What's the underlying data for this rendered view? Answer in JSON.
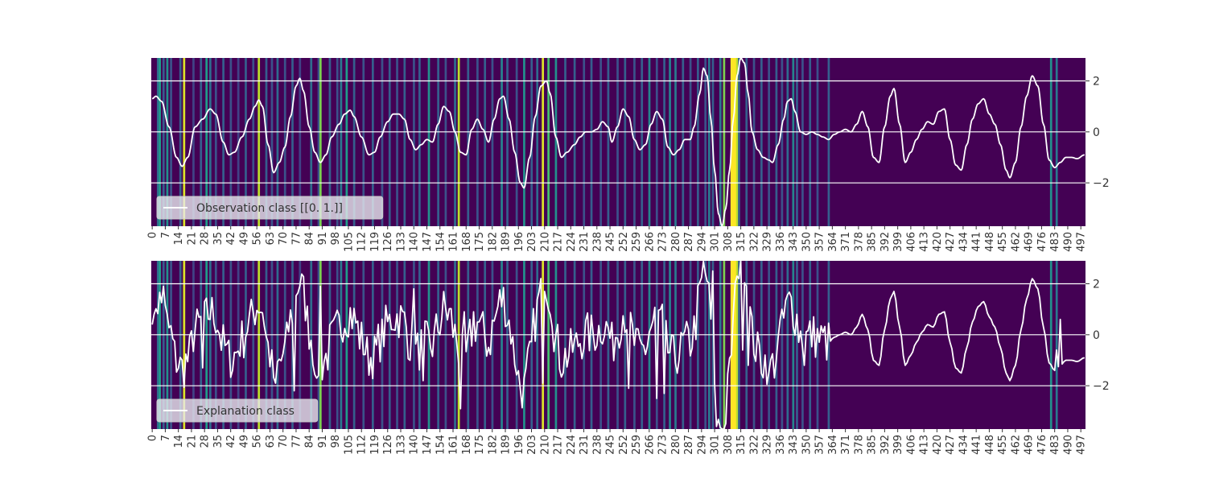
{
  "chart_data": [
    {
      "type": "line",
      "heatmap_overlay": true,
      "colormap": "viridis",
      "legend": {
        "label": "Observation class [[0. 1.]]",
        "placement": "lower-left"
      },
      "xlim": [
        0,
        499
      ],
      "ylim": [
        -3.7,
        2.9
      ],
      "yticks": [
        -2,
        0,
        2
      ],
      "xtick_step": 7,
      "grid": true,
      "line_color": "#ffffff",
      "line_kind": "smooth",
      "series_knots": [
        [
          0,
          1.3
        ],
        [
          2,
          1.4
        ],
        [
          5,
          1.2
        ],
        [
          9,
          0.2
        ],
        [
          13,
          -1.0
        ],
        [
          16,
          -1.35
        ],
        [
          19,
          -1.0
        ],
        [
          23,
          0.2
        ],
        [
          27,
          0.5
        ],
        [
          31,
          0.9
        ],
        [
          34,
          0.7
        ],
        [
          38,
          -0.4
        ],
        [
          41,
          -0.9
        ],
        [
          44,
          -0.8
        ],
        [
          48,
          -0.2
        ],
        [
          52,
          0.5
        ],
        [
          55,
          1.0
        ],
        [
          57,
          1.25
        ],
        [
          59,
          1.0
        ],
        [
          62,
          -0.5
        ],
        [
          65,
          -1.6
        ],
        [
          68,
          -1.2
        ],
        [
          71,
          -0.6
        ],
        [
          74,
          0.6
        ],
        [
          77,
          1.8
        ],
        [
          79,
          2.1
        ],
        [
          81,
          1.6
        ],
        [
          84,
          0.2
        ],
        [
          87,
          -0.8
        ],
        [
          90,
          -1.2
        ],
        [
          93,
          -0.9
        ],
        [
          96,
          -0.2
        ],
        [
          100,
          0.3
        ],
        [
          103,
          0.7
        ],
        [
          106,
          0.85
        ],
        [
          108,
          0.6
        ],
        [
          112,
          -0.2
        ],
        [
          116,
          -0.9
        ],
        [
          119,
          -0.8
        ],
        [
          122,
          -0.2
        ],
        [
          126,
          0.4
        ],
        [
          129,
          0.7
        ],
        [
          132,
          0.7
        ],
        [
          135,
          0.5
        ],
        [
          138,
          -0.3
        ],
        [
          141,
          -0.7
        ],
        [
          144,
          -0.5
        ],
        [
          147,
          -0.3
        ],
        [
          150,
          -0.4
        ],
        [
          153,
          0.3
        ],
        [
          156,
          1.0
        ],
        [
          159,
          0.8
        ],
        [
          162,
          0.0
        ],
        [
          165,
          -0.8
        ],
        [
          168,
          -0.9
        ],
        [
          171,
          0.1
        ],
        [
          174,
          0.5
        ],
        [
          177,
          0.1
        ],
        [
          180,
          -0.4
        ],
        [
          183,
          0.5
        ],
        [
          186,
          1.3
        ],
        [
          188,
          1.4
        ],
        [
          191,
          0.5
        ],
        [
          194,
          -0.8
        ],
        [
          197,
          -2.0
        ],
        [
          199,
          -2.2
        ],
        [
          202,
          -1.0
        ],
        [
          205,
          0.6
        ],
        [
          208,
          1.8
        ],
        [
          211,
          2.0
        ],
        [
          213,
          1.5
        ],
        [
          216,
          -0.2
        ],
        [
          219,
          -1.0
        ],
        [
          222,
          -0.8
        ],
        [
          226,
          -0.5
        ],
        [
          229,
          -0.2
        ],
        [
          232,
          0.0
        ],
        [
          235,
          0.0
        ],
        [
          238,
          0.1
        ],
        [
          241,
          0.4
        ],
        [
          244,
          0.2
        ],
        [
          246,
          -0.4
        ],
        [
          249,
          0.2
        ],
        [
          252,
          0.9
        ],
        [
          255,
          0.6
        ],
        [
          258,
          -0.3
        ],
        [
          261,
          -0.7
        ],
        [
          264,
          -0.5
        ],
        [
          267,
          0.3
        ],
        [
          270,
          0.8
        ],
        [
          273,
          0.5
        ],
        [
          276,
          -0.6
        ],
        [
          279,
          -0.9
        ],
        [
          282,
          -0.7
        ],
        [
          285,
          -0.3
        ],
        [
          288,
          -0.3
        ],
        [
          290,
          0.2
        ],
        [
          293,
          1.5
        ],
        [
          295,
          2.5
        ],
        [
          297,
          2.2
        ],
        [
          299,
          0.5
        ],
        [
          301,
          -1.5
        ],
        [
          303,
          -3.2
        ],
        [
          305,
          -3.7
        ],
        [
          307,
          -3.0
        ],
        [
          309,
          -1.5
        ],
        [
          311,
          0.5
        ],
        [
          313,
          2.2
        ],
        [
          315,
          2.9
        ],
        [
          317,
          2.7
        ],
        [
          319,
          1.5
        ],
        [
          321,
          0.0
        ],
        [
          324,
          -0.7
        ],
        [
          327,
          -1.0
        ],
        [
          330,
          -1.1
        ],
        [
          332,
          -1.2
        ],
        [
          335,
          -0.5
        ],
        [
          338,
          0.5
        ],
        [
          340,
          1.2
        ],
        [
          342,
          1.3
        ],
        [
          344,
          0.8
        ],
        [
          347,
          0.0
        ],
        [
          350,
          -0.1
        ],
        [
          353,
          0.0
        ],
        [
          356,
          -0.1
        ],
        [
          359,
          -0.2
        ],
        [
          362,
          -0.3
        ],
        [
          365,
          -0.1
        ],
        [
          368,
          0.0
        ],
        [
          371,
          0.1
        ],
        [
          374,
          0.0
        ],
        [
          377,
          0.3
        ],
        [
          380,
          0.8
        ],
        [
          383,
          0.2
        ],
        [
          386,
          -1.0
        ],
        [
          389,
          -1.2
        ],
        [
          392,
          0.2
        ],
        [
          395,
          1.4
        ],
        [
          397,
          1.7
        ],
        [
          400,
          0.3
        ],
        [
          403,
          -1.2
        ],
        [
          406,
          -0.8
        ],
        [
          409,
          -0.3
        ],
        [
          412,
          0.1
        ],
        [
          415,
          0.4
        ],
        [
          418,
          0.3
        ],
        [
          421,
          0.8
        ],
        [
          424,
          0.9
        ],
        [
          427,
          -0.3
        ],
        [
          430,
          -1.3
        ],
        [
          433,
          -1.5
        ],
        [
          436,
          -0.5
        ],
        [
          439,
          0.5
        ],
        [
          442,
          1.1
        ],
        [
          445,
          1.3
        ],
        [
          448,
          0.7
        ],
        [
          451,
          0.3
        ],
        [
          454,
          -0.5
        ],
        [
          457,
          -1.5
        ],
        [
          459,
          -1.8
        ],
        [
          462,
          -1.2
        ],
        [
          465,
          0.2
        ],
        [
          468,
          1.4
        ],
        [
          471,
          2.2
        ],
        [
          474,
          1.8
        ],
        [
          477,
          0.3
        ],
        [
          480,
          -1.1
        ],
        [
          483,
          -1.4
        ],
        [
          486,
          -1.2
        ],
        [
          489,
          -1.0
        ],
        [
          492,
          -1.0
        ],
        [
          495,
          -1.05
        ],
        [
          499,
          -0.9
        ]
      ],
      "heat_bands": [
        [
          3,
          0.35
        ],
        [
          4,
          0.55
        ],
        [
          6,
          0.3
        ],
        [
          8,
          0.5
        ],
        [
          10,
          0.25
        ],
        [
          15,
          0.3
        ],
        [
          17,
          0.95
        ],
        [
          22,
          0.2
        ],
        [
          26,
          0.3
        ],
        [
          29,
          0.55
        ],
        [
          31,
          0.35
        ],
        [
          34,
          0.25
        ],
        [
          38,
          0.3
        ],
        [
          42,
          0.25
        ],
        [
          46,
          0.2
        ],
        [
          50,
          0.3
        ],
        [
          54,
          0.25
        ],
        [
          57,
          0.9
        ],
        [
          61,
          0.3
        ],
        [
          64,
          0.25
        ],
        [
          67,
          0.35
        ],
        [
          71,
          0.25
        ],
        [
          75,
          0.3
        ],
        [
          79,
          0.2
        ],
        [
          85,
          0.35
        ],
        [
          89,
          0.25
        ],
        [
          90,
          0.8
        ],
        [
          95,
          0.3
        ],
        [
          99,
          0.25
        ],
        [
          101,
          0.4
        ],
        [
          104,
          0.55
        ],
        [
          108,
          0.3
        ],
        [
          113,
          0.25
        ],
        [
          118,
          0.3
        ],
        [
          123,
          0.25
        ],
        [
          127,
          0.3
        ],
        [
          131,
          0.25
        ],
        [
          135,
          0.3
        ],
        [
          140,
          0.25
        ],
        [
          143,
          0.3
        ],
        [
          148,
          0.5
        ],
        [
          153,
          0.3
        ],
        [
          157,
          0.25
        ],
        [
          162,
          0.35
        ],
        [
          164,
          0.9
        ],
        [
          169,
          0.3
        ],
        [
          174,
          0.25
        ],
        [
          178,
          0.3
        ],
        [
          182,
          0.25
        ],
        [
          187,
          0.45
        ],
        [
          190,
          0.3
        ],
        [
          195,
          0.25
        ],
        [
          199,
          0.5
        ],
        [
          203,
          0.3
        ],
        [
          206,
          0.35
        ],
        [
          209,
          0.95
        ],
        [
          212,
          0.7
        ],
        [
          216,
          0.5
        ],
        [
          221,
          0.3
        ],
        [
          226,
          0.3
        ],
        [
          231,
          0.25
        ],
        [
          235,
          0.3
        ],
        [
          240,
          0.25
        ],
        [
          244,
          0.3
        ],
        [
          249,
          0.25
        ],
        [
          253,
          0.3
        ],
        [
          258,
          0.25
        ],
        [
          262,
          0.3
        ],
        [
          266,
          0.45
        ],
        [
          270,
          0.25
        ],
        [
          274,
          0.3
        ],
        [
          277,
          0.45
        ],
        [
          280,
          0.4
        ],
        [
          284,
          0.3
        ],
        [
          288,
          0.25
        ],
        [
          292,
          0.3
        ],
        [
          296,
          0.25
        ],
        [
          298,
          0.4
        ],
        [
          300,
          0.3
        ],
        [
          304,
          0.4
        ],
        [
          306,
          0.8
        ],
        [
          310,
          1.0
        ],
        [
          311,
          1.0
        ],
        [
          312,
          1.0
        ],
        [
          313,
          0.9
        ],
        [
          314,
          0.3
        ],
        [
          318,
          0.3
        ],
        [
          322,
          0.25
        ],
        [
          326,
          0.3
        ],
        [
          330,
          0.25
        ],
        [
          334,
          0.3
        ],
        [
          337,
          0.25
        ],
        [
          340,
          0.35
        ],
        [
          343,
          0.45
        ],
        [
          345,
          0.3
        ],
        [
          348,
          0.25
        ],
        [
          352,
          0.3
        ],
        [
          356,
          0.25
        ],
        [
          362,
          0.3
        ],
        [
          481,
          0.5
        ],
        [
          484,
          0.4
        ]
      ]
    },
    {
      "type": "line",
      "heatmap_overlay": true,
      "colormap": "viridis",
      "legend": {
        "label": "Explanation class",
        "placement": "lower-left"
      },
      "xlim": [
        0,
        499
      ],
      "ylim": [
        -3.7,
        2.9
      ],
      "yticks": [
        -2,
        0,
        2
      ],
      "xtick_step": 7,
      "grid": true,
      "line_color": "#ffffff",
      "line_kind": "jagged",
      "noise_until": 362,
      "noise_amplitude": 0.9,
      "extra_spikes": [
        [
          1,
          0.8
        ],
        [
          6,
          1.9
        ],
        [
          27,
          -1.3
        ],
        [
          43,
          -1.4
        ],
        [
          66,
          -1.9
        ],
        [
          76,
          -2.2
        ],
        [
          88,
          -1.7
        ],
        [
          90,
          1.9
        ],
        [
          140,
          1.8
        ],
        [
          145,
          -1.8
        ],
        [
          165,
          -2.9
        ],
        [
          167,
          0.9
        ],
        [
          172,
          0.9
        ],
        [
          209,
          -1.9
        ],
        [
          210,
          1.7
        ],
        [
          255,
          -2.1
        ],
        [
          270,
          -2.5
        ],
        [
          274,
          -2.3
        ],
        [
          300,
          2.5
        ],
        [
          302,
          -3.6
        ],
        [
          306,
          -3.7
        ],
        [
          313,
          2.3
        ],
        [
          316,
          -0.6
        ],
        [
          319,
          -1.2
        ],
        [
          330,
          -1.5
        ],
        [
          337,
          1.0
        ],
        [
          349,
          -1.2
        ],
        [
          484,
          -0.6
        ],
        [
          486,
          0.6
        ]
      ],
      "series_knots_ref": 0,
      "heat_bands_ref": 0
    }
  ]
}
